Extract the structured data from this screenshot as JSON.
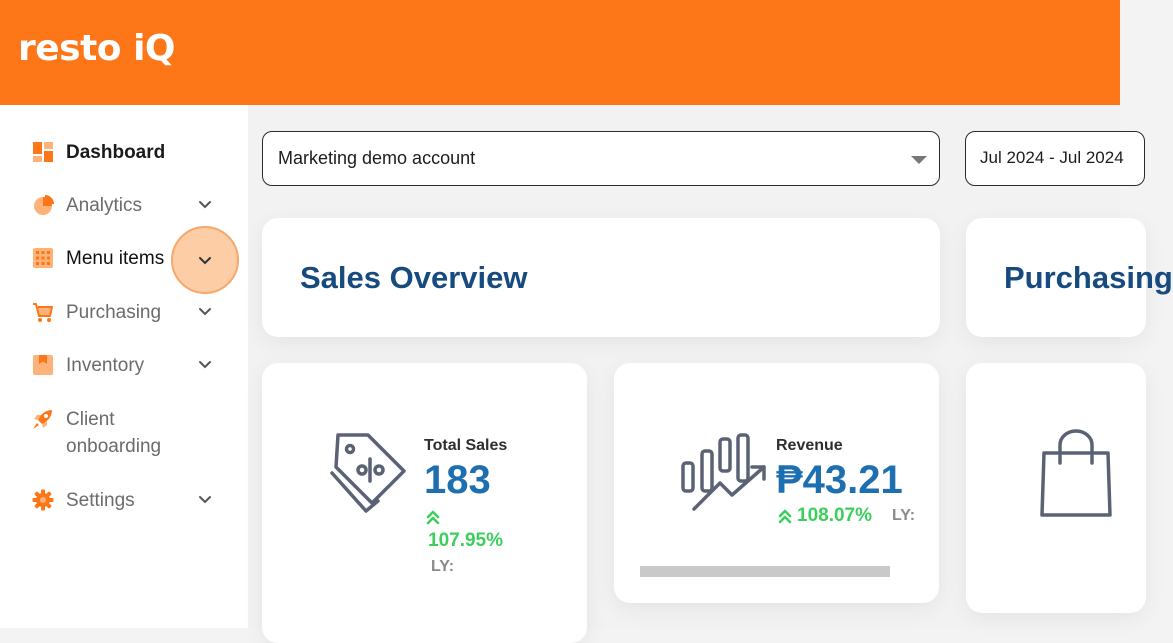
{
  "header": {
    "logo_text": "resto iQ",
    "bg_color": "#fd7617"
  },
  "sidebar": {
    "items": [
      {
        "label": "Dashboard",
        "icon": "dashboard-grid-icon",
        "active": true,
        "has_chevron": false
      },
      {
        "label": "Analytics",
        "icon": "pie-chart-icon",
        "has_chevron": true
      },
      {
        "label": "Menu items",
        "icon": "menu-grid-icon",
        "has_chevron": true
      },
      {
        "label": "Purchasing",
        "icon": "cart-icon",
        "has_chevron": true
      },
      {
        "label": "Inventory",
        "icon": "inventory-box-icon",
        "has_chevron": true
      },
      {
        "label": "Client onboarding",
        "label_line1": "Client",
        "label_line2": "onboarding",
        "icon": "rocket-icon",
        "has_chevron": false
      },
      {
        "label": "Settings",
        "icon": "gear-icon",
        "has_chevron": true
      }
    ]
  },
  "filters": {
    "account_value": "Marketing demo account",
    "date_range_value": "Jul 2024 - Jul 2024"
  },
  "sections": {
    "sales_title": "Sales Overview",
    "purchasing_title": "Purchasing"
  },
  "kpis": {
    "total_sales": {
      "label": "Total Sales",
      "value": "183",
      "change": "107.95%",
      "ly": "LY:"
    },
    "revenue": {
      "label": "Revenue",
      "value": "₱43.21",
      "change": "108.07%",
      "ly": "LY:"
    }
  },
  "colors": {
    "accent": "#fd7617",
    "title_blue": "#174a7e",
    "value_blue": "#1e6fb0",
    "positive_green": "#3ccf5c"
  }
}
